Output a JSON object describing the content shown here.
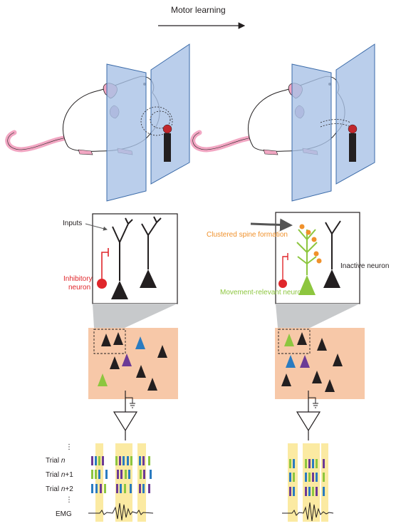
{
  "title": "Motor learning",
  "labels": {
    "inputs": "Inputs",
    "inhibitory_1": "Inhibitory",
    "inhibitory_2": "neuron",
    "clustered": "Clustered spine formation",
    "inactive": "Inactive neuron",
    "movement": "Movement-relevant neuron"
  },
  "trials": {
    "dots": "⋮",
    "trial": "Trial",
    "n": "n",
    "n1": "n",
    "n1_suffix": "+1",
    "n2": "n",
    "n2_suffix": "+2",
    "emg": "EMG"
  },
  "colors": {
    "panel_blue": "#a9c2e6",
    "rat_pink": "#f2a7c3",
    "tissue": "#f7c8a8",
    "highlight": "#fbeaa2",
    "inhibitory_red": "#e0262b",
    "spine_orange": "#f0912b",
    "movement_green": "#8dc63f",
    "neuron_blue": "#2a7bc0",
    "neuron_purple": "#6c3a96",
    "neuron_black": "#231f20"
  }
}
